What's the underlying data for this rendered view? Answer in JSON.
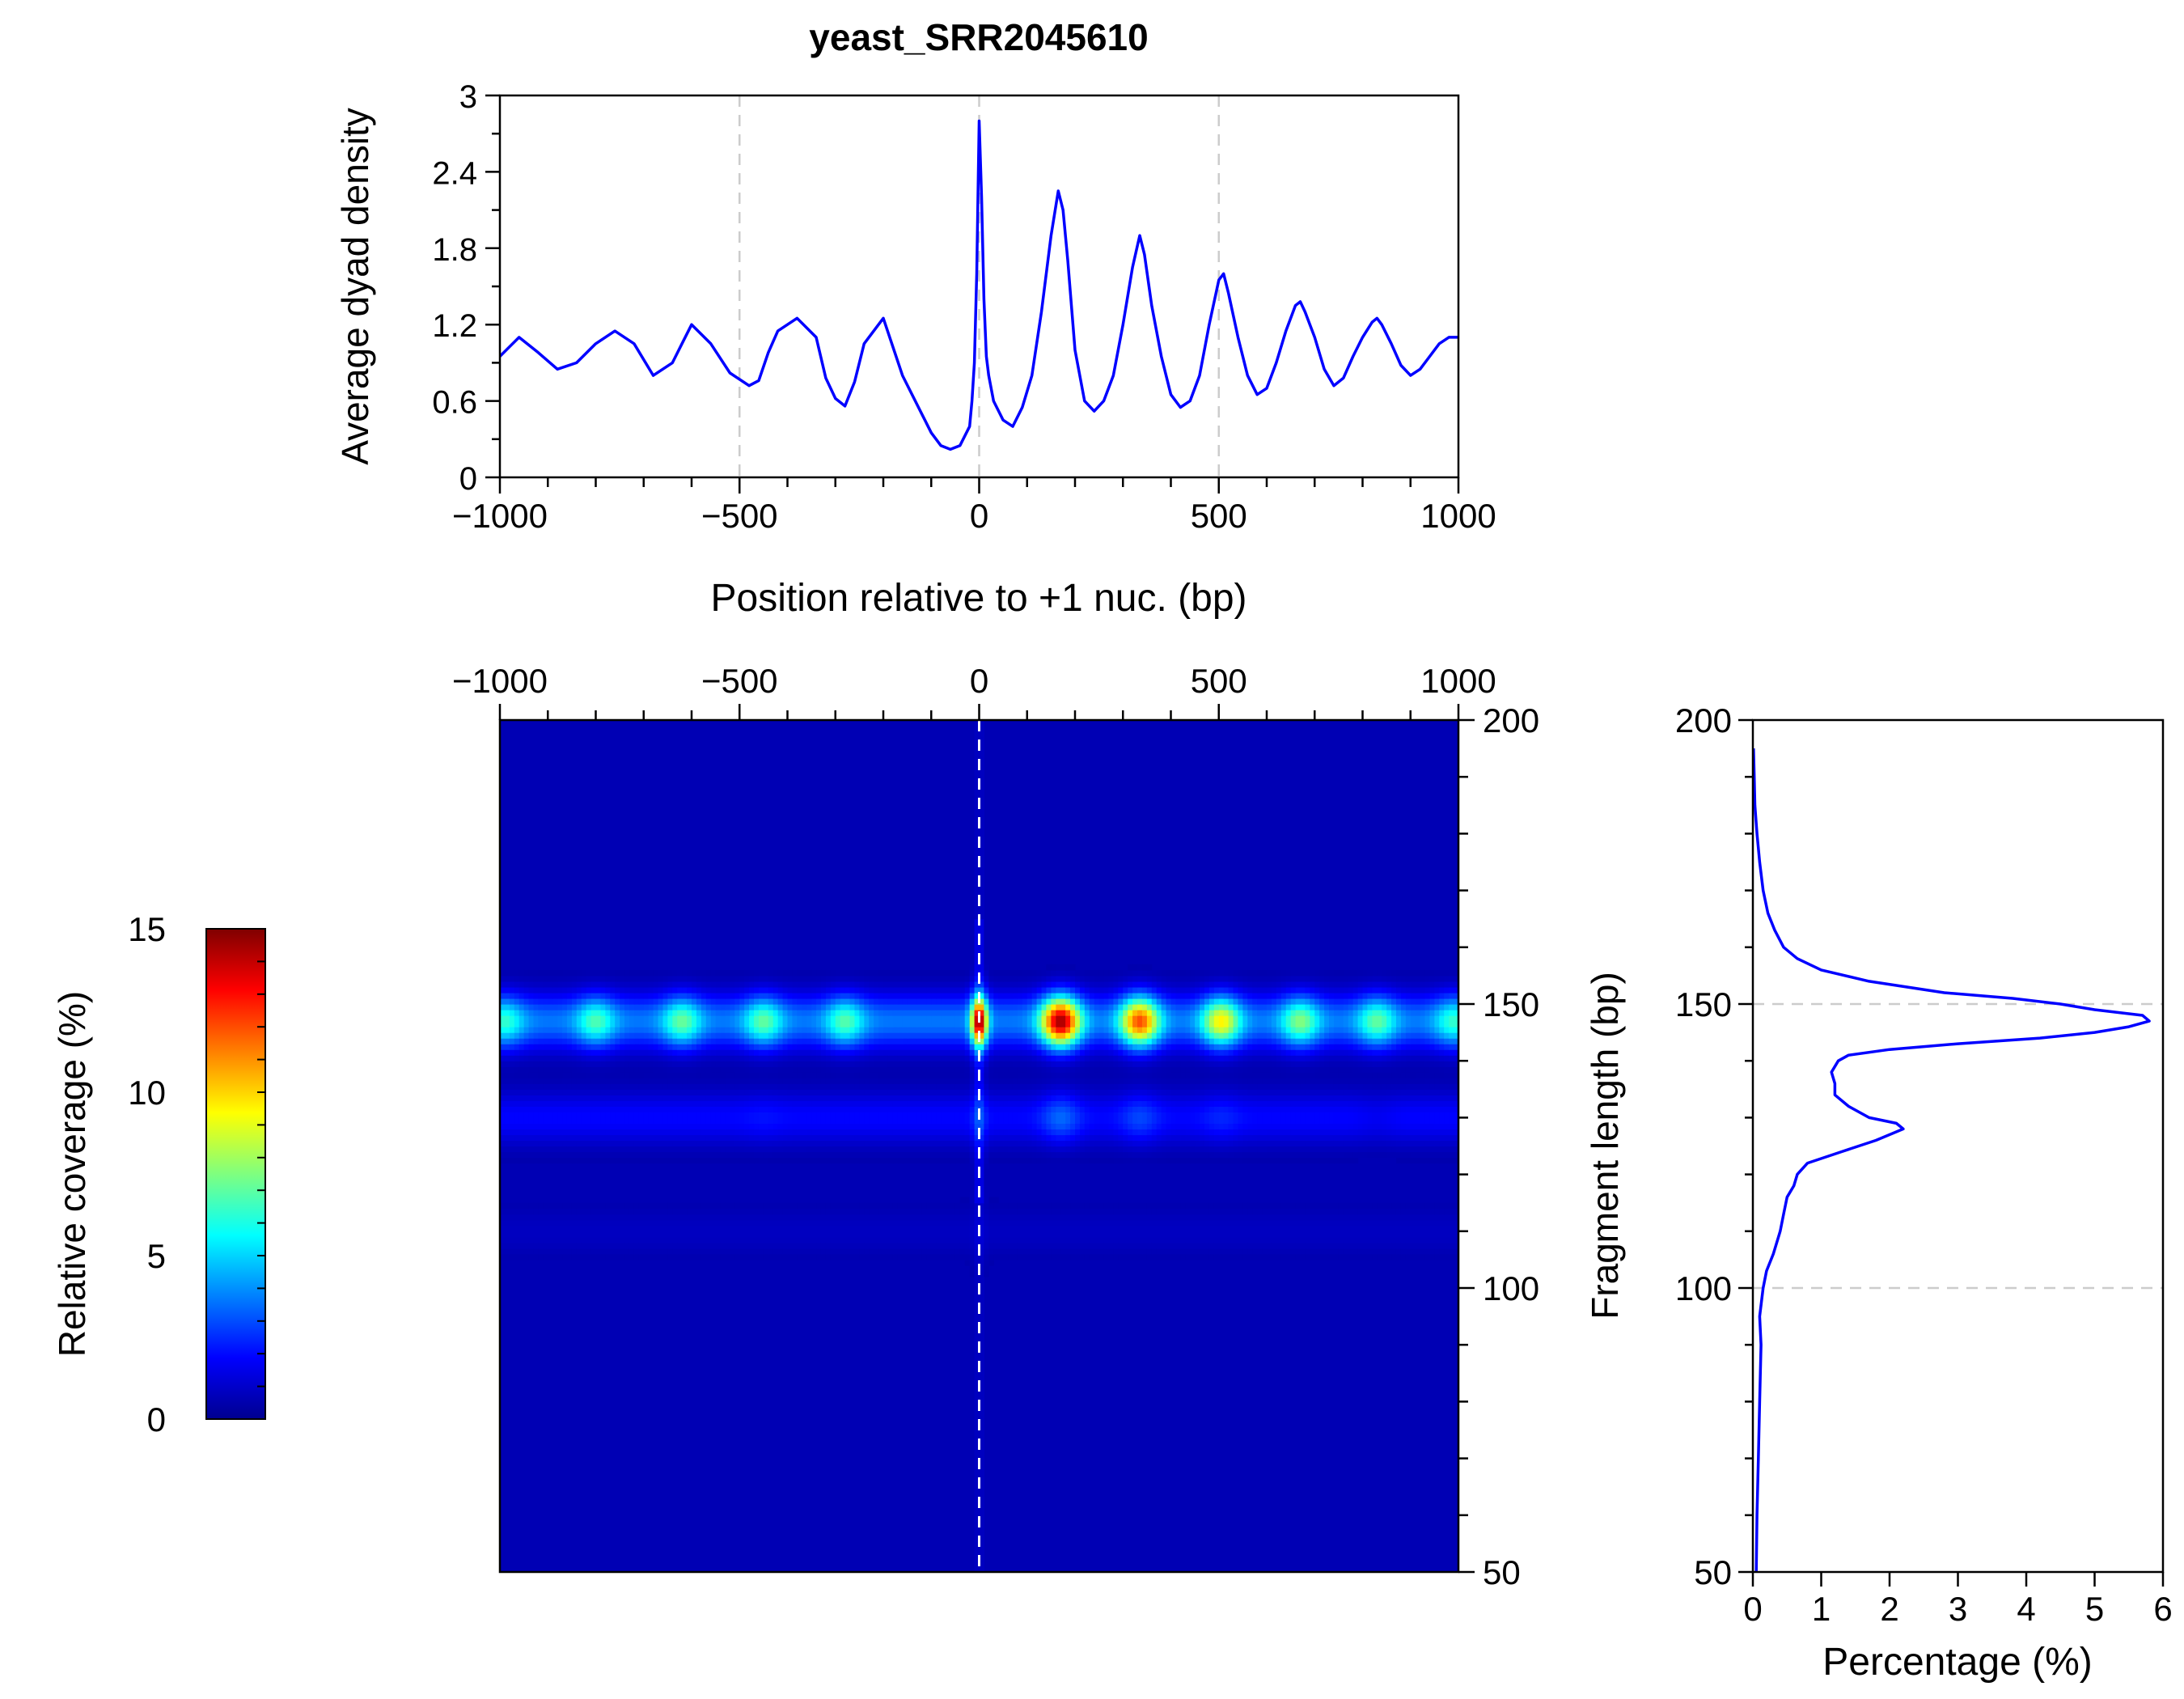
{
  "title": "yeast_SRR2045610",
  "chart_data": [
    {
      "type": "line",
      "id": "dyad_profile",
      "ylabel": "Average dyad density",
      "xlabel": "Position relative to +1 nuc. (bp)",
      "xlim": [
        -1000,
        1000
      ],
      "ylim": [
        0,
        3
      ],
      "yticks": [
        0,
        0.6,
        1.2,
        1.8,
        2.4,
        3
      ],
      "ytick_labels": [
        "0",
        "0.6",
        "1.2",
        "1.8",
        "2.4",
        "3"
      ],
      "xticks": [
        -1000,
        -500,
        0,
        500,
        1000
      ],
      "xtick_labels": [
        "−1000",
        "−500",
        "0",
        "500",
        "1000"
      ],
      "reference_lines_x": [
        -500,
        0,
        500
      ],
      "color": "#0000ff",
      "x": [
        -1000,
        -960,
        -920,
        -880,
        -840,
        -800,
        -760,
        -720,
        -680,
        -640,
        -620,
        -600,
        -560,
        -520,
        -480,
        -460,
        -440,
        -420,
        -380,
        -340,
        -320,
        -300,
        -280,
        -260,
        -240,
        -200,
        -160,
        -120,
        -100,
        -80,
        -60,
        -40,
        -20,
        -15,
        -10,
        -5,
        0,
        5,
        10,
        15,
        20,
        30,
        50,
        70,
        90,
        110,
        130,
        150,
        165,
        175,
        185,
        200,
        220,
        240,
        260,
        280,
        300,
        320,
        335,
        345,
        360,
        380,
        400,
        420,
        440,
        460,
        480,
        500,
        510,
        520,
        540,
        560,
        580,
        600,
        620,
        640,
        660,
        670,
        680,
        700,
        720,
        740,
        760,
        780,
        800,
        820,
        830,
        840,
        860,
        880,
        900,
        920,
        940,
        960,
        980,
        1000
      ],
      "y": [
        0.95,
        1.1,
        0.98,
        0.85,
        0.9,
        1.05,
        1.15,
        1.05,
        0.8,
        0.9,
        1.05,
        1.2,
        1.05,
        0.82,
        0.72,
        0.76,
        0.98,
        1.15,
        1.25,
        1.1,
        0.78,
        0.62,
        0.56,
        0.75,
        1.05,
        1.25,
        0.8,
        0.5,
        0.35,
        0.25,
        0.22,
        0.25,
        0.4,
        0.6,
        0.9,
        1.6,
        2.8,
        2.2,
        1.4,
        0.95,
        0.8,
        0.6,
        0.45,
        0.4,
        0.55,
        0.8,
        1.3,
        1.9,
        2.25,
        2.1,
        1.7,
        1.0,
        0.6,
        0.52,
        0.6,
        0.8,
        1.2,
        1.65,
        1.9,
        1.75,
        1.35,
        0.95,
        0.65,
        0.55,
        0.6,
        0.8,
        1.2,
        1.55,
        1.6,
        1.45,
        1.1,
        0.8,
        0.65,
        0.7,
        0.9,
        1.15,
        1.35,
        1.38,
        1.3,
        1.1,
        0.85,
        0.72,
        0.78,
        0.95,
        1.1,
        1.22,
        1.25,
        1.2,
        1.05,
        0.88,
        0.8,
        0.85,
        0.95,
        1.05,
        1.1,
        1.1
      ]
    },
    {
      "type": "heatmap",
      "id": "vplot",
      "xlim": [
        -1000,
        1000
      ],
      "ylim": [
        50,
        200
      ],
      "xticks": [
        -1000,
        -500,
        0,
        500,
        1000
      ],
      "xtick_labels": [
        "−1000",
        "−500",
        "0",
        "500",
        "1000"
      ],
      "yticks": [
        50,
        100,
        150,
        200
      ],
      "ytick_labels": [
        "50",
        "100",
        "150",
        "200"
      ],
      "reference_lines_x": [
        0
      ],
      "colorscale_range": [
        0,
        15
      ],
      "background_value": 0.6,
      "bands": [
        {
          "length": 147,
          "value": 3.0
        },
        {
          "length": 130,
          "value": 1.3
        },
        {
          "length": 110,
          "value": 0.35
        }
      ],
      "hotspots": [
        {
          "x": -990,
          "length": 147,
          "value": 5.8
        },
        {
          "x": -800,
          "length": 147,
          "value": 6.2
        },
        {
          "x": -620,
          "length": 147,
          "value": 6.6
        },
        {
          "x": -450,
          "length": 147,
          "value": 6.5
        },
        {
          "x": -280,
          "length": 147,
          "value": 6.3
        },
        {
          "x": 0,
          "length": 147,
          "value": 13.5
        },
        {
          "x": 170,
          "length": 147,
          "value": 14.0
        },
        {
          "x": 335,
          "length": 147,
          "value": 11.5
        },
        {
          "x": 505,
          "length": 147,
          "value": 9.0
        },
        {
          "x": 670,
          "length": 147,
          "value": 7.0
        },
        {
          "x": 830,
          "length": 147,
          "value": 6.5
        },
        {
          "x": 990,
          "length": 147,
          "value": 5.8
        },
        {
          "x": -620,
          "length": 130,
          "value": 3.0
        },
        {
          "x": -450,
          "length": 130,
          "value": 3.2
        },
        {
          "x": -280,
          "length": 130,
          "value": 3.0
        },
        {
          "x": 0,
          "length": 130,
          "value": 3.5
        },
        {
          "x": 170,
          "length": 130,
          "value": 4.5
        },
        {
          "x": 335,
          "length": 130,
          "value": 4.0
        },
        {
          "x": 505,
          "length": 130,
          "value": 3.5
        },
        {
          "x": 670,
          "length": 130,
          "value": 3.0
        },
        {
          "x": 830,
          "length": 130,
          "value": 2.8
        }
      ]
    },
    {
      "type": "colorbar",
      "id": "colorbar",
      "label": "Relative coverage (%)",
      "range": [
        0,
        15
      ],
      "ticks": [
        0,
        5,
        10,
        15
      ],
      "tick_labels": [
        "0",
        "5",
        "10",
        "15"
      ],
      "colormap": "jet"
    },
    {
      "type": "line",
      "id": "fragment_distribution",
      "orientation": "horizontal",
      "xlabel": "Percentage (%)",
      "ylabel": "Fragment length (bp)",
      "xlim": [
        0,
        6
      ],
      "ylim": [
        50,
        200
      ],
      "xticks": [
        0,
        1,
        2,
        3,
        4,
        5,
        6
      ],
      "xtick_labels": [
        "0",
        "1",
        "2",
        "3",
        "4",
        "5",
        "6"
      ],
      "yticks": [
        50,
        100,
        150,
        200
      ],
      "ytick_labels": [
        "50",
        "100",
        "150",
        "200"
      ],
      "reference_lines_y": [
        100,
        150
      ],
      "color": "#0000ff",
      "length": [
        50,
        60,
        70,
        80,
        90,
        95,
        100,
        103,
        106,
        110,
        113,
        116,
        118,
        120,
        122,
        124,
        126,
        128,
        129,
        130,
        132,
        134,
        136,
        138,
        140,
        141,
        142,
        143,
        144,
        145,
        146,
        147,
        148,
        149,
        150,
        151,
        152,
        154,
        156,
        158,
        160,
        163,
        166,
        170,
        175,
        180,
        185,
        190,
        195
      ],
      "percentage": [
        0.05,
        0.06,
        0.08,
        0.1,
        0.12,
        0.1,
        0.15,
        0.2,
        0.3,
        0.4,
        0.45,
        0.5,
        0.6,
        0.65,
        0.8,
        1.3,
        1.8,
        2.2,
        2.1,
        1.7,
        1.4,
        1.2,
        1.2,
        1.15,
        1.25,
        1.4,
        2.0,
        3.0,
        4.2,
        5.0,
        5.5,
        5.8,
        5.7,
        5.0,
        4.5,
        3.8,
        2.8,
        1.7,
        1.0,
        0.65,
        0.45,
        0.32,
        0.22,
        0.15,
        0.1,
        0.06,
        0.03,
        0.02,
        0.01
      ]
    }
  ]
}
